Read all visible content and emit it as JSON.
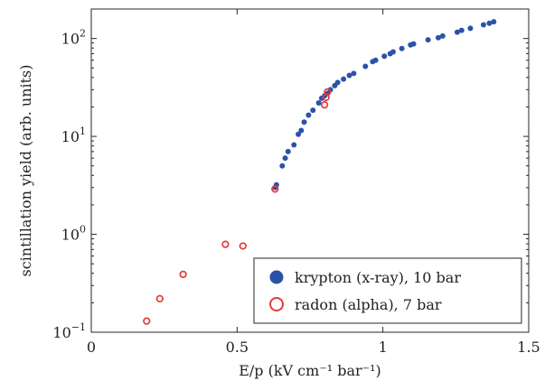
{
  "chart_data": {
    "type": "scatter",
    "title": "",
    "xlabel": "E/p (kV cm⁻¹ bar⁻¹)",
    "ylabel": "scintillation yield (arb. units)",
    "xlim": [
      0,
      1.5
    ],
    "ylim": [
      0.1,
      200
    ],
    "yscale": "log",
    "grid": false,
    "legend_position": "bottom-right",
    "x_ticks": [
      {
        "value": 0,
        "label": "0"
      },
      {
        "value": 0.5,
        "label": "0.5"
      },
      {
        "value": 1,
        "label": "1"
      },
      {
        "value": 1.5,
        "label": "1.5"
      }
    ],
    "y_ticks": [
      {
        "value": 0.1,
        "base": "10",
        "exp": "−1"
      },
      {
        "value": 1,
        "base": "10",
        "exp": "0"
      },
      {
        "value": 10,
        "base": "10",
        "exp": "1"
      },
      {
        "value": 100,
        "base": "10",
        "exp": "2"
      }
    ],
    "series": [
      {
        "name": "krypton (x-ray), 10 bar",
        "marker": "filled-circle",
        "color": "#2a52a8",
        "points": [
          [
            0.63,
            3.0
          ],
          [
            0.635,
            3.2
          ],
          [
            0.655,
            5.0
          ],
          [
            0.665,
            6.0
          ],
          [
            0.675,
            7.0
          ],
          [
            0.695,
            8.2
          ],
          [
            0.71,
            10.5
          ],
          [
            0.72,
            11.5
          ],
          [
            0.73,
            14.0
          ],
          [
            0.745,
            16.5
          ],
          [
            0.76,
            18.5
          ],
          [
            0.78,
            22.0
          ],
          [
            0.79,
            24.5
          ],
          [
            0.8,
            26.0
          ],
          [
            0.81,
            27.5
          ],
          [
            0.82,
            30.0
          ],
          [
            0.835,
            33.0
          ],
          [
            0.845,
            35.5
          ],
          [
            0.865,
            38.5
          ],
          [
            0.885,
            42.0
          ],
          [
            0.9,
            44.0
          ],
          [
            0.94,
            52.0
          ],
          [
            0.965,
            58.0
          ],
          [
            0.975,
            60.0
          ],
          [
            1.005,
            66.0
          ],
          [
            1.025,
            70.0
          ],
          [
            1.035,
            73.0
          ],
          [
            1.065,
            79.0
          ],
          [
            1.095,
            86.0
          ],
          [
            1.105,
            88.0
          ],
          [
            1.155,
            97.0
          ],
          [
            1.19,
            102.0
          ],
          [
            1.205,
            106.0
          ],
          [
            1.255,
            116.0
          ],
          [
            1.27,
            121.0
          ],
          [
            1.3,
            127.0
          ],
          [
            1.345,
            138.0
          ],
          [
            1.365,
            143.0
          ],
          [
            1.38,
            148.0
          ]
        ]
      },
      {
        "name": "radon (alpha), 7 bar",
        "marker": "open-circle",
        "color": "#e03b3b",
        "points": [
          [
            0.19,
            0.13
          ],
          [
            0.235,
            0.22
          ],
          [
            0.315,
            0.39
          ],
          [
            0.46,
            0.79
          ],
          [
            0.52,
            0.76
          ],
          [
            0.63,
            2.9
          ],
          [
            0.8,
            21.0
          ],
          [
            0.805,
            25.0
          ],
          [
            0.81,
            28.5
          ]
        ]
      }
    ]
  }
}
